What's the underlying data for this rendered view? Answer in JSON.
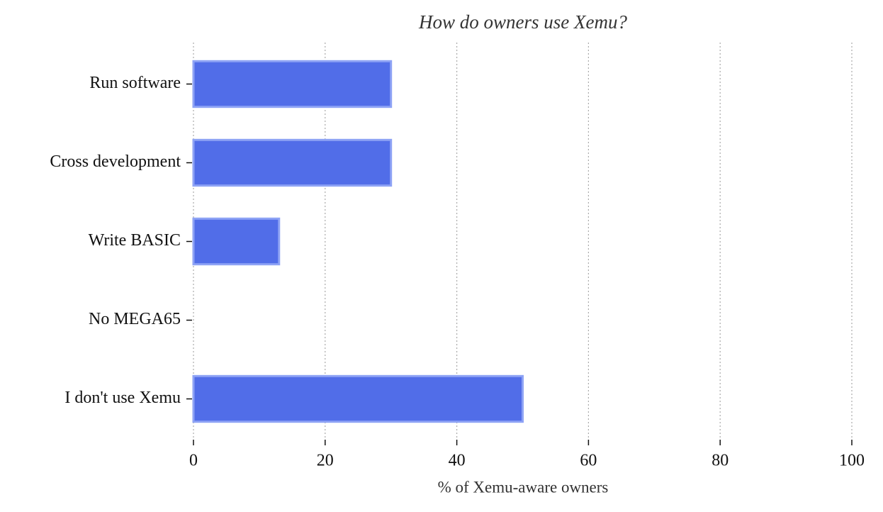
{
  "chart_data": {
    "type": "barh",
    "title": "How do owners use Xemu?",
    "xlabel": "% of Xemu-aware owners",
    "categories": [
      "Run software",
      "Cross development",
      "Write BASIC",
      "No MEGA65",
      "I don't use Xemu"
    ],
    "values": [
      30,
      30,
      13,
      0,
      50
    ],
    "color": "#516de8",
    "edgecolor": "#8ea3f5",
    "xlim": [
      0,
      100
    ],
    "xticks": [
      0,
      20,
      40,
      60,
      80,
      100
    ],
    "grid": true
  }
}
